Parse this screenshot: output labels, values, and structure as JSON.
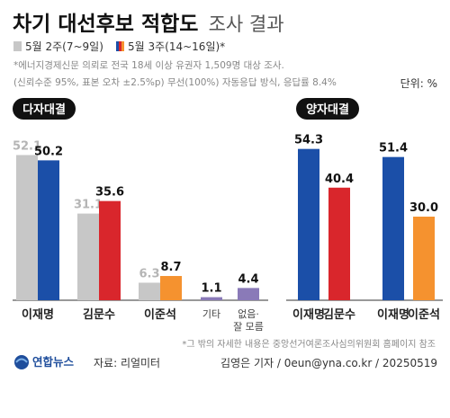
{
  "header": {
    "title_bold": "차기 대선후보 적합도",
    "title_light": "조사 결과"
  },
  "legend": {
    "prev": "5월 2주(7~9일)",
    "curr": "5월 3주(14~16일)*"
  },
  "notes": [
    "*에너지경제신문 의뢰로 전국 18세 이상 유권자 1,509명 대상 조사.",
    "(신뢰수준 95%, 표본 오차 ±2.5%p) 무선(100%) 자동응답 방식, 응답률 8.4%"
  ],
  "unit": "단위: %",
  "colors": {
    "prev": "#c7c7c7",
    "lee": "#1b4fa8",
    "kim": "#d9262c",
    "lee_js": "#f5922f",
    "other": "#8a7ab8",
    "pill": "#111111",
    "baseline": "#333333"
  },
  "chart_data": [
    {
      "type": "bar",
      "title": "다자대결",
      "categories": [
        "이재명",
        "김문수",
        "이준석",
        "기타",
        "없음·잘 모름"
      ],
      "series": [
        {
          "name": "5월 2주(7~9일)",
          "values": [
            52.1,
            31.1,
            6.3,
            null,
            null
          ]
        },
        {
          "name": "5월 3주(14~16일)*",
          "values": [
            50.2,
            35.6,
            8.7,
            1.1,
            4.4
          ]
        }
      ],
      "labels": {
        "prev": [
          "52.1",
          "31.1",
          "6.3",
          "",
          ""
        ],
        "curr": [
          "50.2",
          "35.6",
          "8.7",
          "1.1",
          "4.4"
        ]
      },
      "cat_labels": [
        "이재명",
        "김문수",
        "이준석",
        "기타",
        "없음·",
        "잘 모름"
      ],
      "ylim": [
        0,
        55
      ]
    },
    {
      "type": "bar",
      "title": "양자대결",
      "groups": [
        {
          "categories": [
            "이재명",
            "김문수"
          ],
          "values": [
            54.3,
            40.4
          ]
        },
        {
          "categories": [
            "이재명",
            "이준석"
          ],
          "values": [
            51.4,
            30.0
          ]
        }
      ],
      "labels": [
        "54.3",
        "40.4",
        "51.4",
        "30.0"
      ],
      "cat_labels": [
        "이재명",
        "김문수",
        "이재명",
        "이준석"
      ],
      "ylim": [
        0,
        55
      ]
    }
  ],
  "footer": {
    "note": "*그 밖의 자세한 내용은 중앙선거여론조사심의위원회 홈페이지 참조",
    "logo_text": "연합뉴스",
    "source": "자료: 리얼미터",
    "credit": "김영은 기자 / 0eun@yna.co.kr / 20250519"
  }
}
